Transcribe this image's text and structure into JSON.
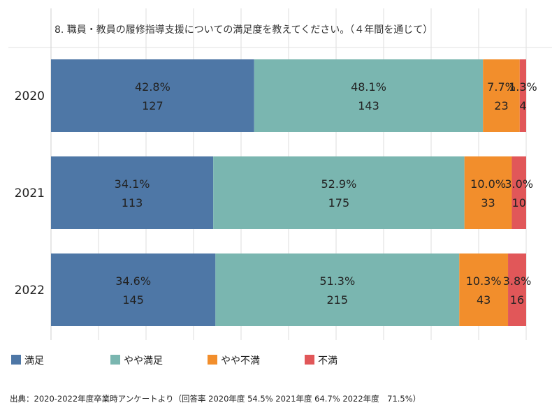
{
  "title": "8. 職員・教員の履修指導支援についての満足度を教えてください。（４年間を通じて）",
  "source_note": "出典：2020-2022年度卒業時アンケートより（回答率 2020年度 54.5% 2021年度 64.7% 2022年度　71.5%）",
  "chart_data": {
    "type": "bar",
    "orientation": "horizontal",
    "stacked": true,
    "normalized_percent": true,
    "title": "8. 職員・教員の履修指導支援についての満足度を教えてください。（４年間を通じて）",
    "categories": [
      "2020",
      "2021",
      "2022"
    ],
    "series": [
      {
        "name": "満足",
        "color": "#4e77a6",
        "values": [
          127,
          113,
          145
        ],
        "percent_labels": [
          "42.8%",
          "34.1%",
          "34.6%"
        ]
      },
      {
        "name": "やや満足",
        "color": "#7ab6b0",
        "values": [
          143,
          175,
          215
        ],
        "percent_labels": [
          "48.1%",
          "52.9%",
          "51.3%"
        ]
      },
      {
        "name": "やや不満",
        "color": "#f28e2c",
        "values": [
          23,
          33,
          43
        ],
        "percent_labels": [
          "7.7%",
          "10.0%",
          "10.3%"
        ]
      },
      {
        "name": "不満",
        "color": "#e15759",
        "values": [
          4,
          10,
          16
        ],
        "percent_labels": [
          "1.3%",
          "3.0%",
          "3.8%"
        ]
      }
    ],
    "legend": "bottom",
    "grid": true
  }
}
